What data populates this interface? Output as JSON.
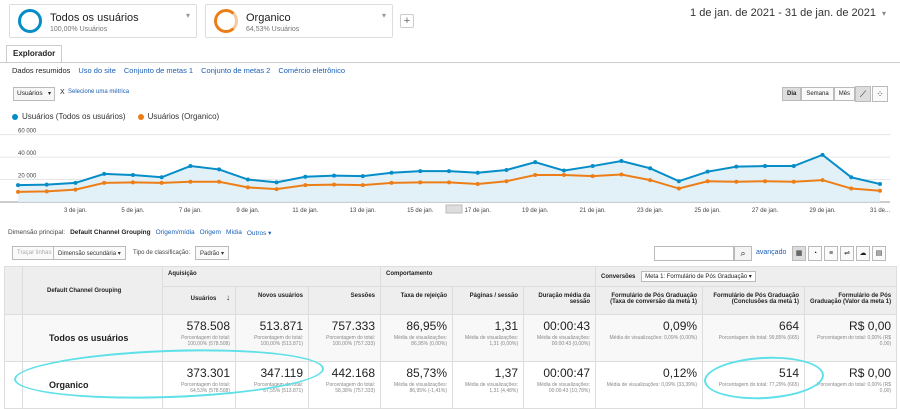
{
  "segments": [
    {
      "title": "Todos os usuários",
      "subtitle": "100,00% Usuários",
      "color": "#058dc7"
    },
    {
      "title": "Organico",
      "subtitle": "64,53% Usuários",
      "color": "#ed7e17"
    }
  ],
  "add_segment": "+",
  "date_range": "1 de jan. de 2021 - 31 de jan. de 2021",
  "tabs": {
    "explorer": "Explorador"
  },
  "subnav": [
    "Dados resumidos",
    "Uso do site",
    "Conjunto de metas 1",
    "Conjunto de metas 2",
    "Comércio eletrônico"
  ],
  "metric_selector": {
    "value": "Usuários",
    "x": "X",
    "add": "Selecione uma métrica"
  },
  "granularity": [
    "Dia",
    "Semana",
    "Mês"
  ],
  "chart_data": {
    "type": "line",
    "x": [
      "1 de jan.",
      "2 de jan.",
      "3 de jan.",
      "4 de jan.",
      "5 de jan.",
      "6 de jan.",
      "7 de jan.",
      "8 de jan.",
      "9 de jan.",
      "10 de jan.",
      "11 de jan.",
      "12 de jan.",
      "13 de jan.",
      "14 de jan.",
      "15 de jan.",
      "16 de jan.",
      "17 de jan.",
      "18 de jan.",
      "19 de jan.",
      "20 de jan.",
      "21 de jan.",
      "22 de jan.",
      "23 de jan.",
      "24 de jan.",
      "25 de jan.",
      "26 de jan.",
      "27 de jan.",
      "28 de jan.",
      "29 de jan.",
      "30 de jan.",
      "31 de jan."
    ],
    "tick_labels": [
      "3 de jan.",
      "5 de jan.",
      "7 de jan.",
      "9 de jan.",
      "11 de jan.",
      "13 de jan.",
      "15 de jan.",
      "17 de jan.",
      "19 de jan.",
      "21 de jan.",
      "23 de jan.",
      "25 de jan.",
      "27 de jan.",
      "29 de jan.",
      "31 de..."
    ],
    "y_ticks": [
      "60 000",
      "40 000",
      "20 000"
    ],
    "ylim": [
      0,
      65000
    ],
    "series": [
      {
        "name": "Usuários (Todos os usuários)",
        "color": "#058dc7",
        "values": [
          15000,
          15500,
          17000,
          25000,
          24000,
          22000,
          32000,
          29000,
          20000,
          17500,
          22500,
          23500,
          23000,
          26000,
          27500,
          27500,
          26000,
          28500,
          35500,
          28000,
          32000,
          36500,
          30000,
          18500,
          27000,
          31500,
          32000,
          32000,
          42000,
          22000,
          16000
        ]
      },
      {
        "name": "Usuários (Organico)",
        "color": "#ed7e17",
        "values": [
          9000,
          9500,
          11000,
          17000,
          17500,
          17000,
          18000,
          18000,
          13000,
          11500,
          15000,
          15500,
          15000,
          17000,
          17500,
          17500,
          16000,
          18500,
          24000,
          24000,
          23000,
          24500,
          19500,
          12000,
          18500,
          18000,
          18500,
          18000,
          19500,
          12000,
          10000
        ]
      }
    ],
    "grid": true,
    "legend": "top-left"
  },
  "legend": [
    "Usuários (Todos os usuários)",
    "Usuários (Organico)"
  ],
  "dimension_row": {
    "label": "Dimensão principal:",
    "current": "Default Channel Grouping",
    "options": [
      "Origem/mídia",
      "Origem",
      "Mídia",
      "Outros ▾"
    ]
  },
  "controls": {
    "plot": "Traçar linhas",
    "secondary": "Dimensão secundária ▾",
    "sort_label": "Tipo de classificação:",
    "sort": "Padrão ▾",
    "search_icon": "search-icon",
    "advanced": "avançado"
  },
  "table": {
    "dim_header": "Default Channel Grouping",
    "groups": [
      "Aquisição",
      "Comportamento",
      "Conversões"
    ],
    "goal_select": "Meta 1: Formulário de Pós Graduação",
    "columns": [
      "Usuários",
      "Novos usuários",
      "Sessões",
      "Taxa de rejeição",
      "Páginas / sessão",
      "Duração média da sessão",
      "Formulário de Pós Graduação (Taxa de conversão da meta 1)",
      "Formulário de Pós Graduação (Conclusões da meta 1)",
      "Formulário de Pós Graduação (Valor da meta 1)"
    ],
    "sort_arrow": "↓",
    "rows": [
      {
        "name": "Todos os usuários",
        "cells": [
          {
            "v": "578.508",
            "s": "Porcentagem do total: 100,00% (578.508)"
          },
          {
            "v": "513.871",
            "s": "Porcentagem do total: 100,00% (513.871)"
          },
          {
            "v": "757.333",
            "s": "Porcentagem do total: 100,00% (757.333)"
          },
          {
            "v": "86,95%",
            "s": "Média de visualizações: 86,95% (0,00%)"
          },
          {
            "v": "1,31",
            "s": "Média de visualizações: 1,31 (0,00%)"
          },
          {
            "v": "00:00:43",
            "s": "Média de visualizações: 00:00:43 (0,00%)"
          },
          {
            "v": "0,09%",
            "s": "Média de visualizações: 0,09% (0,00%)"
          },
          {
            "v": "664",
            "s": "Porcentagem do total: 99,85% (665)"
          },
          {
            "v": "R$ 0,00",
            "s": "Porcentagem do total: 0,00% (R$ 0,00)"
          }
        ]
      },
      {
        "name": "Organico",
        "cells": [
          {
            "v": "373.301",
            "s": "Porcentagem do total: 64,53% (578.508)"
          },
          {
            "v": "347.119",
            "s": "Porcentagem do total: 67,55% (513.871)"
          },
          {
            "v": "442.168",
            "s": "Porcentagem do total: 58,38% (757.333)"
          },
          {
            "v": "85,73%",
            "s": "Média de visualizações: 86,95% (-1,41%)"
          },
          {
            "v": "1,37",
            "s": "Média de visualizações: 1,31 (4,48%)"
          },
          {
            "v": "00:00:47",
            "s": "Média de visualizações: 00:00:43 (10,78%)"
          },
          {
            "v": "0,12%",
            "s": "Média de visualizações: 0,09% (33,39%)"
          },
          {
            "v": "514",
            "s": "Porcentagem do total: 77,29% (665)"
          },
          {
            "v": "R$ 0,00",
            "s": "Porcentagem do total: 0,00% (R$ 0,00)"
          }
        ]
      }
    ]
  }
}
